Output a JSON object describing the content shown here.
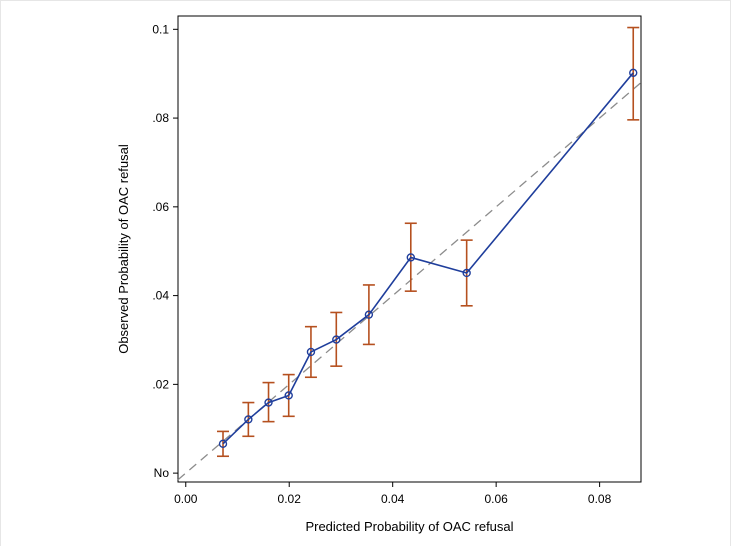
{
  "chart_data": {
    "type": "line",
    "title": "",
    "xlabel": "Predicted Probability of OAC refusal",
    "ylabel": "Observed Probability of OAC refusal",
    "xlim": [
      -0.0015,
      0.088
    ],
    "ylim": [
      -0.002,
      0.103
    ],
    "x_ticks": [
      {
        "value": 0.0,
        "label": "0.00"
      },
      {
        "value": 0.02,
        "label": "0.02"
      },
      {
        "value": 0.04,
        "label": "0.04"
      },
      {
        "value": 0.06,
        "label": "0.06"
      },
      {
        "value": 0.08,
        "label": "0.08"
      }
    ],
    "y_ticks": [
      {
        "value": 0.0,
        "label": "No"
      },
      {
        "value": 0.02,
        "label": ".02"
      },
      {
        "value": 0.04,
        "label": ".04"
      },
      {
        "value": 0.06,
        "label": ".06"
      },
      {
        "value": 0.08,
        "label": ".08"
      },
      {
        "value": 0.1,
        "label": "0.1"
      }
    ],
    "grid": false,
    "reference_line": {
      "style": "dashed",
      "from": [
        -0.0015,
        -0.0015
      ],
      "to": [
        0.088,
        0.088
      ]
    },
    "series": [
      {
        "x": [
          0.0072,
          0.0121,
          0.016,
          0.0199,
          0.0242,
          0.0291,
          0.0354,
          0.0435,
          0.0543,
          0.0865
        ],
        "y": [
          0.0066,
          0.0121,
          0.0159,
          0.0175,
          0.0273,
          0.0301,
          0.0357,
          0.0486,
          0.0451,
          0.0902
        ],
        "y_lower": [
          0.0038,
          0.0083,
          0.0116,
          0.0128,
          0.0216,
          0.0241,
          0.029,
          0.041,
          0.0377,
          0.0796
        ],
        "y_upper": [
          0.0094,
          0.0159,
          0.0204,
          0.0222,
          0.033,
          0.0362,
          0.0424,
          0.0563,
          0.0525,
          0.1004
        ]
      }
    ],
    "colors": {
      "line": "#1f3e9c",
      "marker": "#1f3e9c",
      "error_bar": "#b5501f",
      "reference": "#8c8c8c",
      "axis": "#000000"
    }
  }
}
